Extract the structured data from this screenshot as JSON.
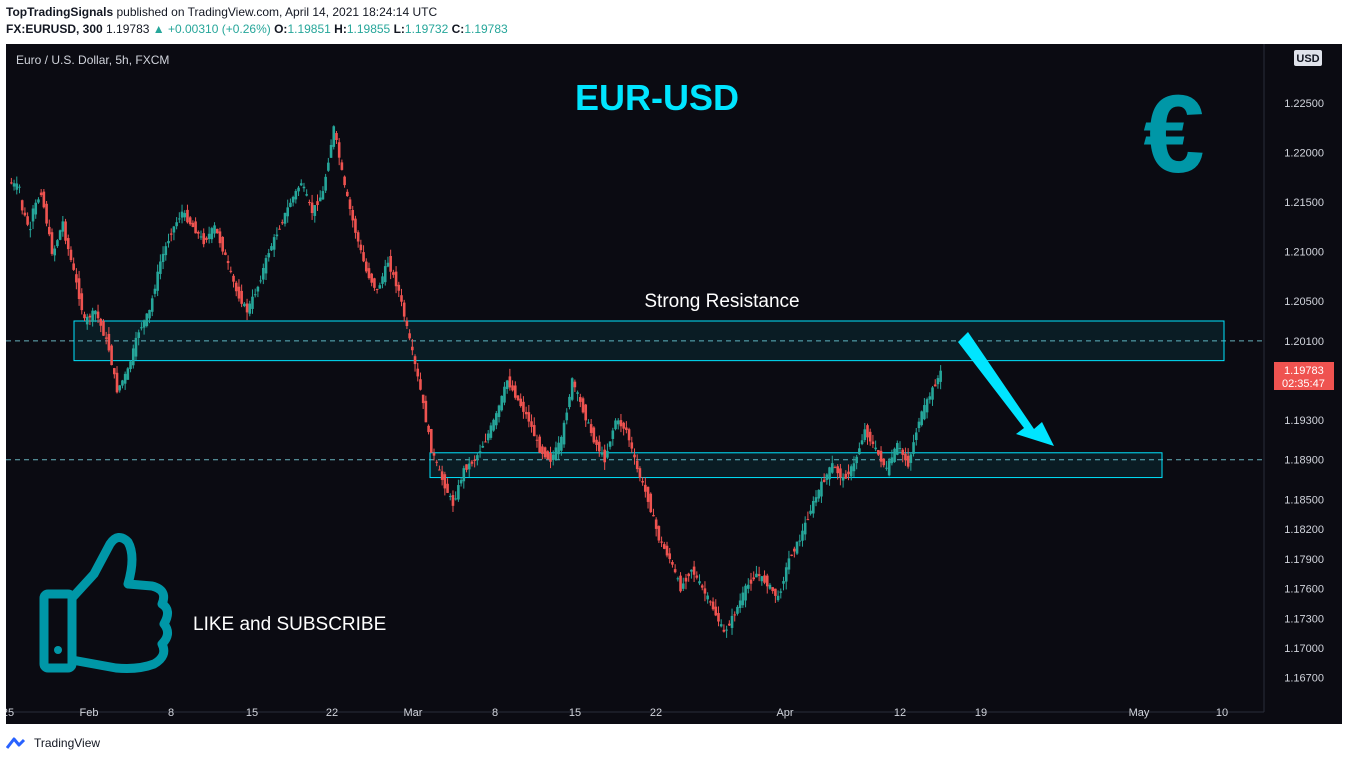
{
  "header": {
    "publisher": "TopTradingSignals",
    "published_text": "published on TradingView.com, April 14, 2021 18:24:14 UTC",
    "symbol": "FX:EURUSD, 300",
    "last": "1.19783",
    "change": "▲ +0.00310 (+0.26%)",
    "o_label": "O:",
    "o_value": "1.19851",
    "h_label": "H:",
    "h_value": "1.19855",
    "l_label": "L:",
    "l_value": "1.19732",
    "c_label": "C:",
    "c_value": "1.19783"
  },
  "chart_title": "Euro / U.S. Dollar, 5h, FXCM",
  "currency_badge": "USD",
  "colors": {
    "background": "#0b0b12",
    "up": "#26a69a",
    "down": "#ef5350",
    "accent": "#00e5ff",
    "teal_icon": "#0097a7",
    "price_label": "#ef5350"
  },
  "annotations": {
    "pair_title": "EUR-USD",
    "resistance_label": "Strong Resistance",
    "cta_label": "LIKE and SUBSCRIBE",
    "euro_symbol": "€",
    "thumbs_up_icon": "thumbs-up-icon",
    "arrow_icon": "down-arrow-icon"
  },
  "price_label": {
    "value": "1.19783",
    "countdown": "02:35:47"
  },
  "footer": {
    "brand": "TradingView",
    "logo_icon": "tradingview-logo-icon"
  },
  "chart_data": {
    "type": "candlestick",
    "y_ticks": [
      "1.22500",
      "1.22000",
      "1.21500",
      "1.21000",
      "1.20500",
      "1.20100",
      "1.19300",
      "1.18900",
      "1.18500",
      "1.18200",
      "1.17900",
      "1.17600",
      "1.17300",
      "1.17000",
      "1.16700"
    ],
    "x_ticks": [
      "25",
      "Feb",
      "8",
      "15",
      "22",
      "Mar",
      "8",
      "15",
      "22",
      "Apr",
      "12",
      "19",
      "May",
      "10"
    ],
    "ylim": [
      1.164,
      1.23
    ],
    "resistance_zone": [
      1.199,
      1.203
    ],
    "support_zone": [
      1.1872,
      1.1897
    ],
    "horizontal_lines": [
      1.201,
      1.189
    ],
    "price_path": [
      [
        1.217,
        1.2165
      ],
      [
        1.215,
        1.212
      ],
      [
        1.2135,
        1.216
      ],
      [
        1.216,
        1.21
      ],
      [
        1.2095,
        1.213
      ],
      [
        1.2125,
        1.208
      ],
      [
        1.208,
        1.203
      ],
      [
        1.203,
        1.204
      ],
      [
        1.204,
        1.201
      ],
      [
        1.2015,
        1.196
      ],
      [
        1.196,
        1.198
      ],
      [
        1.198,
        1.202
      ],
      [
        1.202,
        1.204
      ],
      [
        1.204,
        1.209
      ],
      [
        1.209,
        1.212
      ],
      [
        1.212,
        1.214
      ],
      [
        1.214,
        1.2125
      ],
      [
        1.2125,
        1.211
      ],
      [
        1.211,
        1.2125
      ],
      [
        1.2125,
        1.2095
      ],
      [
        1.2095,
        1.206
      ],
      [
        1.206,
        1.204
      ],
      [
        1.204,
        1.2065
      ],
      [
        1.2065,
        1.21
      ],
      [
        1.21,
        1.2125
      ],
      [
        1.2125,
        1.215
      ],
      [
        1.215,
        1.217
      ],
      [
        1.217,
        1.214
      ],
      [
        1.214,
        1.216
      ],
      [
        1.216,
        1.2225
      ],
      [
        1.2225,
        1.2165
      ],
      [
        1.2165,
        1.212
      ],
      [
        1.212,
        1.208
      ],
      [
        1.208,
        1.206
      ],
      [
        1.206,
        1.209
      ],
      [
        1.209,
        1.206
      ],
      [
        1.206,
        1.201
      ],
      [
        1.201,
        1.196
      ],
      [
        1.196,
        1.19
      ],
      [
        1.19,
        1.187
      ],
      [
        1.187,
        1.1845
      ],
      [
        1.1845,
        1.188
      ],
      [
        1.188,
        1.189
      ],
      [
        1.189,
        1.191
      ],
      [
        1.191,
        1.1935
      ],
      [
        1.1935,
        1.197
      ],
      [
        1.197,
        1.195
      ],
      [
        1.195,
        1.193
      ],
      [
        1.193,
        1.19
      ],
      [
        1.19,
        1.189
      ],
      [
        1.189,
        1.191
      ],
      [
        1.191,
        1.197
      ],
      [
        1.197,
        1.194
      ],
      [
        1.194,
        1.191
      ],
      [
        1.191,
        1.189
      ],
      [
        1.189,
        1.193
      ],
      [
        1.193,
        1.192
      ],
      [
        1.192,
        1.188
      ],
      [
        1.188,
        1.185
      ],
      [
        1.185,
        1.181
      ],
      [
        1.181,
        1.179
      ],
      [
        1.179,
        1.176
      ],
      [
        1.176,
        1.178
      ],
      [
        1.178,
        1.176
      ],
      [
        1.176,
        1.174
      ],
      [
        1.174,
        1.1715
      ],
      [
        1.1715,
        1.1735
      ],
      [
        1.1735,
        1.176
      ],
      [
        1.176,
        1.1775
      ],
      [
        1.1775,
        1.1765
      ],
      [
        1.1765,
        1.175
      ],
      [
        1.175,
        1.179
      ],
      [
        1.179,
        1.181
      ],
      [
        1.181,
        1.184
      ],
      [
        1.184,
        1.1865
      ],
      [
        1.1865,
        1.1885
      ],
      [
        1.1885,
        1.187
      ],
      [
        1.187,
        1.1885
      ],
      [
        1.1885,
        1.192
      ],
      [
        1.192,
        1.19
      ],
      [
        1.19,
        1.188
      ],
      [
        1.188,
        1.1905
      ],
      [
        1.1905,
        1.1885
      ],
      [
        1.1885,
        1.193
      ],
      [
        1.193,
        1.1955
      ],
      [
        1.1955,
        1.1978
      ]
    ]
  }
}
